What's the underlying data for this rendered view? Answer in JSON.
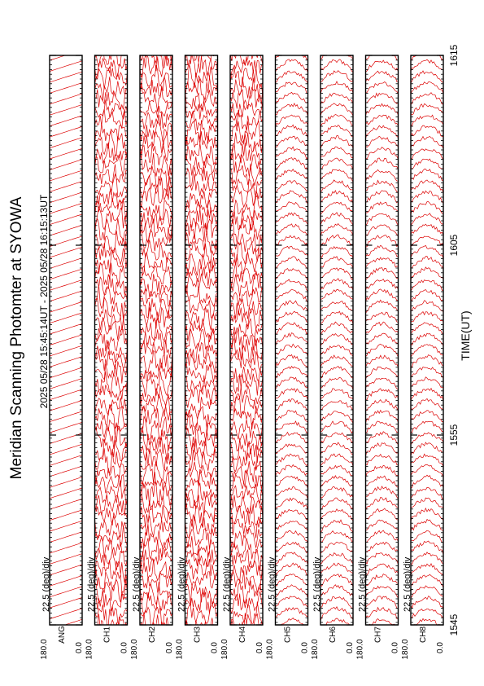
{
  "title": "Meridian Scanning Photomter at SYOWA",
  "subtitle": "2025 05/28 15:45:14UT - 2025 05/28 16:15:13UT",
  "xlabel": "TIME(UT)",
  "colors": {
    "trace": "#dd0000",
    "frame": "#000000"
  },
  "chart_data": {
    "type": "line",
    "title": "Meridian Scanning Photomter at SYOWA",
    "subtitle": "2025 05/28 15:45:14UT - 2025 05/28 16:15:13UT",
    "xlabel": "TIME(UT)",
    "x_ticks": [
      "1545",
      "1555",
      "1605",
      "1615"
    ],
    "xlim": [
      "1545",
      "1615"
    ],
    "ylim": [
      0.0,
      180.0
    ],
    "scale_label": "22.5 (deg)/div",
    "panels": [
      {
        "channel": "ANG",
        "ymax_label": "180.0",
        "ymin_label": "0.0",
        "scale_label": "22.5 (deg)/div",
        "pattern": "sawtooth"
      },
      {
        "channel": "CH1",
        "ymax_label": "180.0",
        "ymin_label": "0.0",
        "scale_label": "22.5 (deg)/div",
        "pattern": "noisy"
      },
      {
        "channel": "CH2",
        "ymax_label": "180.0",
        "ymin_label": "0.0",
        "scale_label": "22.5 (deg)/div",
        "pattern": "noisy"
      },
      {
        "channel": "CH3",
        "ymax_label": "180.0",
        "ymin_label": "0.0",
        "scale_label": "22.5 (deg)/div",
        "pattern": "noisy"
      },
      {
        "channel": "CH4",
        "ymax_label": "180.0",
        "ymin_label": "0.0",
        "scale_label": "22.5 (deg)/div",
        "pattern": "noisy"
      },
      {
        "channel": "CH5",
        "ymax_label": "180.0",
        "ymin_label": "0.0",
        "scale_label": "22.5 (deg)/div",
        "pattern": "smooth"
      },
      {
        "channel": "CH6",
        "ymax_label": "180.0",
        "ymin_label": "0.0",
        "scale_label": "22.5 (deg)/div",
        "pattern": "smooth"
      },
      {
        "channel": "CH7",
        "ymax_label": "180.0",
        "ymin_label": "0.0",
        "scale_label": "22.5 (deg)/div",
        "pattern": "smooth"
      },
      {
        "channel": "CH8",
        "ymax_label": "180.0",
        "ymin_label": "0.0",
        "scale_label": "22.5 (deg)/div",
        "pattern": "smooth"
      }
    ]
  }
}
